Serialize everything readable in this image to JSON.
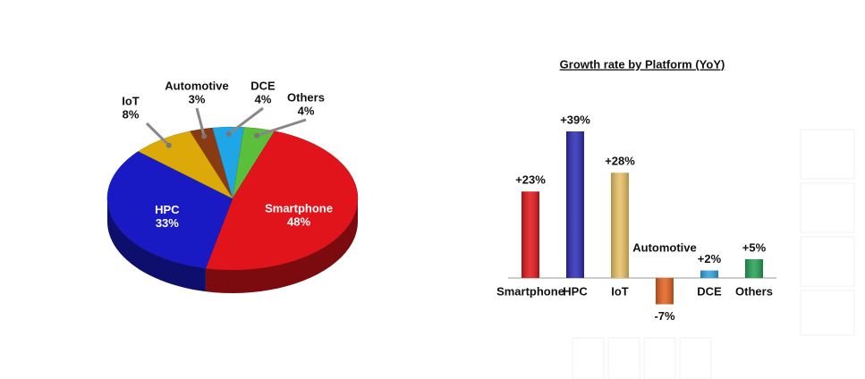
{
  "chart_data": [
    {
      "type": "pie",
      "categories": [
        "Automotive",
        "DCE",
        "Others",
        "Smartphone",
        "HPC",
        "IoT"
      ],
      "values": [
        3,
        4,
        4,
        48,
        33,
        8
      ],
      "value_labels": [
        "3%",
        "4%",
        "4%",
        "48%",
        "33%",
        "8%"
      ],
      "colors": [
        "#8a3a12",
        "#1fa6e6",
        "#5cbf3c",
        "#e2141b",
        "#1a1ac4",
        "#dcaa08"
      ]
    },
    {
      "type": "bar",
      "title": "Growth rate by Platform (YoY)",
      "categories": [
        "Smartphone",
        "HPC",
        "IoT",
        "Automotive",
        "DCE",
        "Others"
      ],
      "values": [
        23,
        39,
        28,
        -7,
        2,
        5
      ],
      "value_labels": [
        "+23%",
        "+39%",
        "+28%",
        "-7%",
        "+2%",
        "+5%"
      ],
      "colors": [
        "#e0141a",
        "#2a2ab4",
        "#e8c064",
        "#e2601e",
        "#2fa0e0",
        "#22a052"
      ]
    }
  ]
}
